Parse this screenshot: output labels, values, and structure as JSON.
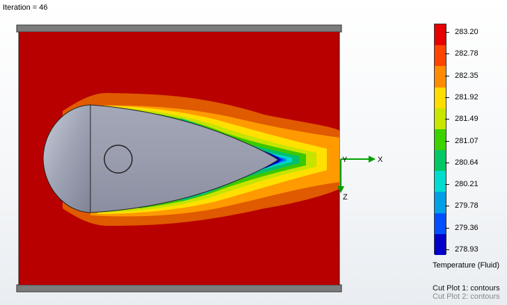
{
  "status": {
    "iteration_label": "Iteration = 46"
  },
  "legend": {
    "values": [
      "283.20",
      "282.78",
      "282.35",
      "281.92",
      "281.49",
      "281.07",
      "280.64",
      "280.21",
      "279.78",
      "279.36",
      "278.93"
    ],
    "colors": [
      "#e60000",
      "#ff4400",
      "#ff8c00",
      "#ffdd00",
      "#c8e600",
      "#3cd200",
      "#00c864",
      "#00dcd0",
      "#00a0e6",
      "#0050ff",
      "#0000c8"
    ],
    "title": "Temperature (Fluid)"
  },
  "axes": {
    "x_label": "X",
    "y_label": "Y",
    "z_label": "Z"
  },
  "plots": {
    "cut1": "Cut Plot 1: contours",
    "cut2": "Cut Plot 2: contours"
  }
}
